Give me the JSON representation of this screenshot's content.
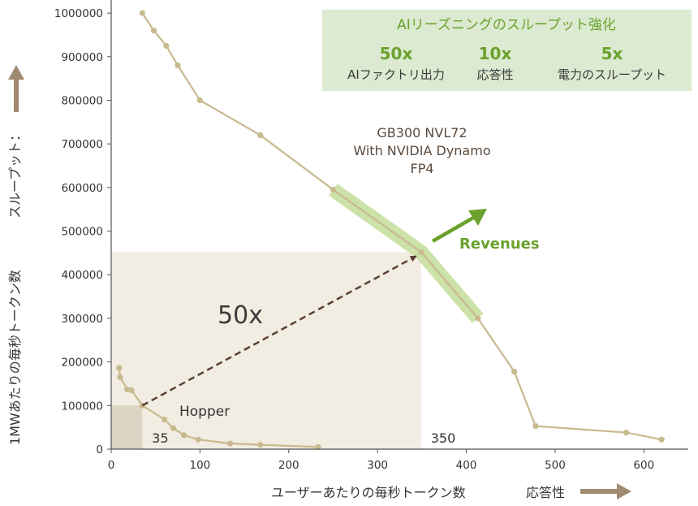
{
  "chart_data": {
    "type": "line",
    "x_ticks": [
      0,
      100,
      200,
      300,
      400,
      500,
      600
    ],
    "y_ticks": [
      0,
      100000,
      200000,
      300000,
      400000,
      500000,
      600000,
      700000,
      800000,
      900000,
      1000000
    ],
    "xlim": [
      0,
      650
    ],
    "ylim": [
      0,
      1030000
    ],
    "grid": false,
    "xlabel": "ユーザーあたりの毎秒トークン数",
    "xlabel_suffix": "応答性",
    "ylabel": "1MWあたりの毎秒トークン数",
    "ylabel_suffix": "スループット：",
    "series": [
      {
        "name": "GB300 NVL72\nWith NVIDIA Dynamo\nFP4",
        "color": "#c8b98e",
        "x": [
          35,
          48,
          62,
          75,
          100,
          168,
          250,
          349,
          413,
          454,
          478,
          580,
          620
        ],
        "y": [
          1000000,
          960000,
          925000,
          880000,
          800000,
          720000,
          595000,
          452000,
          300000,
          178000,
          53000,
          38000,
          22000
        ]
      },
      {
        "name": "Hopper",
        "color": "#c8b98e",
        "x": [
          9,
          10,
          18,
          23,
          35,
          60,
          70,
          82,
          98,
          134,
          168,
          233
        ],
        "y": [
          186000,
          165000,
          137000,
          135000,
          100000,
          68000,
          48000,
          32000,
          22000,
          13000,
          10000,
          5000
        ]
      }
    ],
    "highlight_segment": {
      "x": [
        250,
        349,
        413
      ],
      "y": [
        595000,
        452000,
        300000
      ],
      "color": "#c7df9e"
    },
    "highlight_box": {
      "x": [
        0,
        349
      ],
      "y": [
        0,
        452000
      ],
      "color": "#f1ede3"
    },
    "small_box": {
      "x": [
        0,
        35
      ],
      "y": [
        0,
        100000
      ],
      "color": "#ddd4c3"
    },
    "arrow": {
      "from": [
        35,
        100000
      ],
      "to": [
        349,
        452000
      ],
      "label": "50x"
    },
    "marker_labels": [
      {
        "text": "35",
        "x": 35,
        "y": 0
      },
      {
        "text": "350",
        "x": 349,
        "y": 0
      }
    ],
    "annotations": {
      "series_label_lines": [
        "GB300 NVL72",
        "With NVIDIA Dynamo",
        "FP4"
      ],
      "hopper_label": "Hopper",
      "revenues_label": "Revenues"
    }
  },
  "info_box": {
    "title": "AIリーズニングのスループット強化",
    "items": [
      {
        "value": "50x",
        "label": "AIファクトリ出力"
      },
      {
        "value": "10x",
        "label": "応答性"
      },
      {
        "value": "5x",
        "label": "電力のスループット"
      }
    ]
  },
  "colors": {
    "line": "#c8b98e",
    "accent_green": "#6aa22c",
    "box_green": "#dbead0",
    "box_title_green": "#6aa22c",
    "arrow_brown": "#a08a72",
    "dash_brown": "#5c4033",
    "label_dark": "#5a4a3e"
  }
}
